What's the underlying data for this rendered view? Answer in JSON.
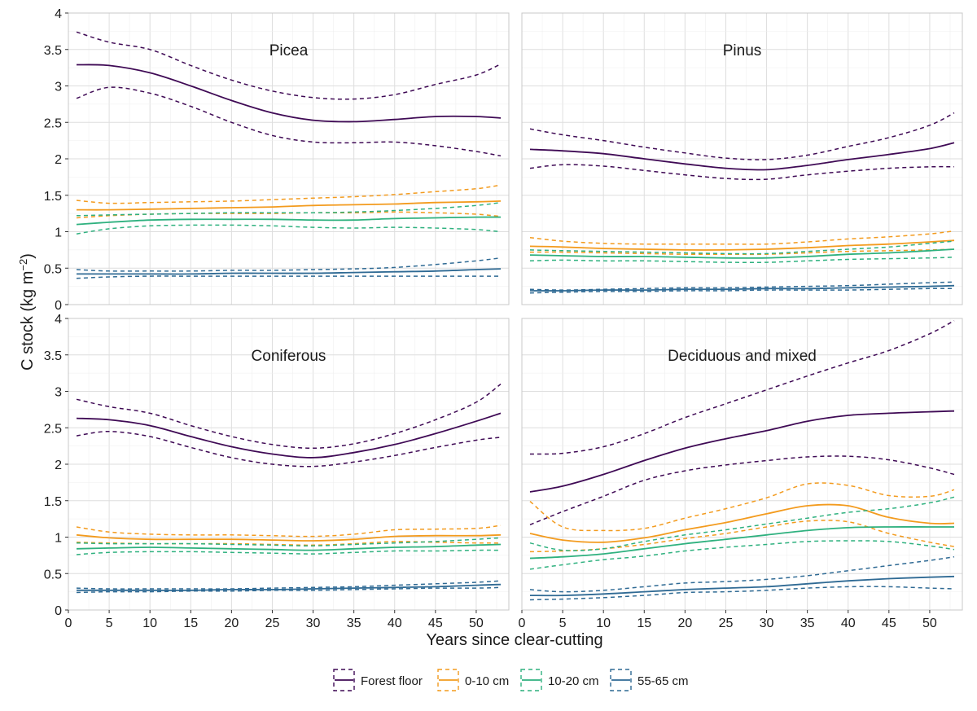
{
  "figure": {
    "ylabel_main": "C stock (kg m",
    "ylabel_sup": "−2",
    "ylabel_close": ")",
    "xlabel": "Years since clear-cutting"
  },
  "legend": {
    "placement": "bottom",
    "items": [
      {
        "label": "Forest floor",
        "color": "#3f0a55"
      },
      {
        "label": "0-10 cm",
        "color": "#f39b1e"
      },
      {
        "label": "10-20 cm",
        "color": "#2fb17f"
      },
      {
        "label": "55-65 cm",
        "color": "#2f6a94"
      }
    ]
  },
  "chart_data": [
    {
      "type": "line",
      "panel": "Picea",
      "title": "Picea",
      "xlim": [
        0,
        54
      ],
      "ylim": [
        0,
        4
      ],
      "x_ticks": [
        0,
        5,
        10,
        15,
        20,
        25,
        30,
        35,
        40,
        45,
        50
      ],
      "y_ticks": [
        0,
        0.5,
        1,
        1.5,
        2,
        2.5,
        3,
        3.5,
        4
      ],
      "grid": true,
      "line_styles": {
        "mean": "solid",
        "lower": "dashed",
        "upper": "dashed"
      },
      "x": [
        1,
        5,
        10,
        15,
        20,
        25,
        30,
        35,
        40,
        45,
        50,
        53
      ],
      "series": [
        {
          "name": "Forest floor",
          "color": "#3f0a55",
          "mean": [
            3.29,
            3.28,
            3.18,
            3.0,
            2.8,
            2.63,
            2.53,
            2.51,
            2.54,
            2.58,
            2.58,
            2.56
          ],
          "lower": [
            2.83,
            2.98,
            2.9,
            2.72,
            2.5,
            2.32,
            2.23,
            2.22,
            2.23,
            2.18,
            2.1,
            2.04
          ],
          "upper": [
            3.74,
            3.6,
            3.5,
            3.28,
            3.08,
            2.93,
            2.84,
            2.82,
            2.88,
            3.02,
            3.15,
            3.3
          ]
        },
        {
          "name": "0-10 cm",
          "color": "#f39b1e",
          "mean": [
            1.3,
            1.3,
            1.31,
            1.32,
            1.33,
            1.34,
            1.36,
            1.37,
            1.38,
            1.4,
            1.41,
            1.42
          ],
          "lower": [
            1.19,
            1.22,
            1.24,
            1.25,
            1.25,
            1.25,
            1.26,
            1.26,
            1.27,
            1.26,
            1.24,
            1.21
          ],
          "upper": [
            1.43,
            1.39,
            1.4,
            1.41,
            1.42,
            1.44,
            1.46,
            1.48,
            1.51,
            1.55,
            1.59,
            1.64
          ]
        },
        {
          "name": "10-20 cm",
          "color": "#2fb17f",
          "mean": [
            1.1,
            1.13,
            1.16,
            1.17,
            1.17,
            1.17,
            1.16,
            1.16,
            1.18,
            1.19,
            1.2,
            1.2
          ],
          "lower": [
            0.97,
            1.04,
            1.08,
            1.09,
            1.09,
            1.08,
            1.06,
            1.05,
            1.06,
            1.05,
            1.03,
            1.0
          ],
          "upper": [
            1.22,
            1.23,
            1.24,
            1.25,
            1.26,
            1.26,
            1.26,
            1.27,
            1.29,
            1.32,
            1.36,
            1.4
          ]
        },
        {
          "name": "55-65 cm",
          "color": "#2f6a94",
          "mean": [
            0.42,
            0.42,
            0.42,
            0.42,
            0.43,
            0.43,
            0.43,
            0.44,
            0.45,
            0.46,
            0.48,
            0.49
          ],
          "lower": [
            0.36,
            0.38,
            0.39,
            0.39,
            0.39,
            0.39,
            0.39,
            0.39,
            0.39,
            0.39,
            0.39,
            0.39
          ],
          "upper": [
            0.48,
            0.46,
            0.46,
            0.46,
            0.47,
            0.47,
            0.48,
            0.49,
            0.51,
            0.55,
            0.6,
            0.64
          ]
        }
      ]
    },
    {
      "type": "line",
      "panel": "Pinus",
      "title": "Pinus",
      "xlim": [
        0,
        54
      ],
      "ylim": [
        0,
        4
      ],
      "x_ticks": [
        0,
        5,
        10,
        15,
        20,
        25,
        30,
        35,
        40,
        45,
        50
      ],
      "y_ticks": [
        0,
        0.5,
        1,
        1.5,
        2,
        2.5,
        3,
        3.5,
        4
      ],
      "grid": true,
      "line_styles": {
        "mean": "solid",
        "lower": "dashed",
        "upper": "dashed"
      },
      "x": [
        1,
        5,
        10,
        15,
        20,
        25,
        30,
        35,
        40,
        45,
        50,
        53
      ],
      "series": [
        {
          "name": "Forest floor",
          "color": "#3f0a55",
          "mean": [
            2.13,
            2.11,
            2.07,
            2.0,
            1.93,
            1.87,
            1.85,
            1.91,
            1.99,
            2.06,
            2.14,
            2.22
          ],
          "lower": [
            1.87,
            1.92,
            1.9,
            1.84,
            1.78,
            1.73,
            1.72,
            1.78,
            1.83,
            1.87,
            1.89,
            1.89
          ],
          "upper": [
            2.41,
            2.33,
            2.25,
            2.16,
            2.08,
            2.01,
            1.99,
            2.05,
            2.17,
            2.29,
            2.46,
            2.63
          ]
        },
        {
          "name": "0-10 cm",
          "color": "#f39b1e",
          "mean": [
            0.8,
            0.79,
            0.77,
            0.76,
            0.75,
            0.75,
            0.76,
            0.78,
            0.81,
            0.83,
            0.86,
            0.88
          ],
          "lower": [
            0.72,
            0.72,
            0.71,
            0.7,
            0.69,
            0.69,
            0.69,
            0.71,
            0.73,
            0.74,
            0.75,
            0.76
          ],
          "upper": [
            0.92,
            0.87,
            0.84,
            0.83,
            0.83,
            0.83,
            0.83,
            0.86,
            0.9,
            0.93,
            0.97,
            1.01
          ]
        },
        {
          "name": "10-20 cm",
          "color": "#2fb17f",
          "mean": [
            0.68,
            0.67,
            0.66,
            0.66,
            0.65,
            0.64,
            0.64,
            0.66,
            0.69,
            0.71,
            0.74,
            0.76
          ],
          "lower": [
            0.6,
            0.61,
            0.6,
            0.6,
            0.59,
            0.58,
            0.58,
            0.6,
            0.62,
            0.63,
            0.64,
            0.65
          ],
          "upper": [
            0.75,
            0.74,
            0.73,
            0.72,
            0.71,
            0.7,
            0.7,
            0.73,
            0.76,
            0.79,
            0.84,
            0.87
          ]
        },
        {
          "name": "55-65 cm",
          "color": "#2f6a94",
          "mean": [
            0.19,
            0.19,
            0.2,
            0.2,
            0.21,
            0.21,
            0.22,
            0.22,
            0.23,
            0.24,
            0.25,
            0.26
          ],
          "lower": [
            0.16,
            0.17,
            0.18,
            0.18,
            0.19,
            0.19,
            0.2,
            0.2,
            0.2,
            0.21,
            0.22,
            0.22
          ],
          "upper": [
            0.21,
            0.2,
            0.21,
            0.22,
            0.23,
            0.23,
            0.24,
            0.25,
            0.26,
            0.28,
            0.3,
            0.31
          ]
        }
      ]
    },
    {
      "type": "line",
      "panel": "Coniferous",
      "title": "Coniferous",
      "xlim": [
        0,
        54
      ],
      "ylim": [
        0,
        4
      ],
      "x_ticks": [
        0,
        5,
        10,
        15,
        20,
        25,
        30,
        35,
        40,
        45,
        50
      ],
      "y_ticks": [
        0,
        0.5,
        1,
        1.5,
        2,
        2.5,
        3,
        3.5,
        4
      ],
      "grid": true,
      "line_styles": {
        "mean": "solid",
        "lower": "dashed",
        "upper": "dashed"
      },
      "x": [
        1,
        5,
        10,
        15,
        20,
        25,
        30,
        35,
        40,
        45,
        50,
        53
      ],
      "series": [
        {
          "name": "Forest floor",
          "color": "#3f0a55",
          "mean": [
            2.63,
            2.61,
            2.53,
            2.38,
            2.24,
            2.14,
            2.09,
            2.16,
            2.27,
            2.42,
            2.59,
            2.7
          ],
          "lower": [
            2.39,
            2.45,
            2.38,
            2.23,
            2.09,
            2.0,
            1.97,
            2.03,
            2.12,
            2.23,
            2.33,
            2.37
          ],
          "upper": [
            2.89,
            2.79,
            2.7,
            2.53,
            2.38,
            2.27,
            2.22,
            2.28,
            2.42,
            2.61,
            2.85,
            3.1
          ]
        },
        {
          "name": "0-10 cm",
          "color": "#f39b1e",
          "mean": [
            1.03,
            0.99,
            0.97,
            0.97,
            0.97,
            0.96,
            0.95,
            0.97,
            1.01,
            1.02,
            1.02,
            1.03
          ],
          "lower": [
            0.93,
            0.92,
            0.91,
            0.91,
            0.91,
            0.9,
            0.89,
            0.91,
            0.94,
            0.93,
            0.92,
            0.92
          ],
          "upper": [
            1.14,
            1.07,
            1.04,
            1.03,
            1.03,
            1.02,
            1.01,
            1.04,
            1.1,
            1.11,
            1.12,
            1.16
          ]
        },
        {
          "name": "10-20 cm",
          "color": "#2fb17f",
          "mean": [
            0.84,
            0.85,
            0.86,
            0.85,
            0.84,
            0.83,
            0.82,
            0.84,
            0.86,
            0.87,
            0.89,
            0.9
          ],
          "lower": [
            0.76,
            0.79,
            0.8,
            0.8,
            0.79,
            0.78,
            0.77,
            0.79,
            0.81,
            0.81,
            0.82,
            0.82
          ],
          "upper": [
            0.92,
            0.91,
            0.91,
            0.91,
            0.9,
            0.89,
            0.88,
            0.9,
            0.92,
            0.94,
            0.97,
            0.99
          ]
        },
        {
          "name": "55-65 cm",
          "color": "#2f6a94",
          "mean": [
            0.27,
            0.27,
            0.27,
            0.27,
            0.28,
            0.28,
            0.29,
            0.3,
            0.31,
            0.32,
            0.34,
            0.35
          ],
          "lower": [
            0.24,
            0.25,
            0.25,
            0.26,
            0.26,
            0.27,
            0.27,
            0.28,
            0.29,
            0.3,
            0.3,
            0.31
          ],
          "upper": [
            0.3,
            0.29,
            0.29,
            0.29,
            0.29,
            0.3,
            0.31,
            0.32,
            0.34,
            0.36,
            0.38,
            0.4
          ]
        }
      ]
    },
    {
      "type": "line",
      "panel": "Deciduous and mixed",
      "title": "Deciduous and mixed",
      "xlim": [
        0,
        54
      ],
      "ylim": [
        0,
        4
      ],
      "x_ticks": [
        0,
        5,
        10,
        15,
        20,
        25,
        30,
        35,
        40,
        45,
        50
      ],
      "y_ticks": [
        0,
        0.5,
        1,
        1.5,
        2,
        2.5,
        3,
        3.5,
        4
      ],
      "grid": true,
      "line_styles": {
        "mean": "solid",
        "lower": "dashed",
        "upper": "dashed"
      },
      "x": [
        1,
        5,
        10,
        15,
        20,
        25,
        30,
        35,
        40,
        45,
        50,
        53
      ],
      "series": [
        {
          "name": "Forest floor",
          "color": "#3f0a55",
          "mean": [
            1.62,
            1.7,
            1.86,
            2.05,
            2.22,
            2.35,
            2.46,
            2.59,
            2.67,
            2.7,
            2.72,
            2.73
          ],
          "lower": [
            1.17,
            1.35,
            1.56,
            1.78,
            1.91,
            1.99,
            2.05,
            2.1,
            2.11,
            2.06,
            1.95,
            1.86
          ],
          "upper": [
            2.14,
            2.15,
            2.24,
            2.42,
            2.64,
            2.83,
            3.02,
            3.21,
            3.39,
            3.56,
            3.79,
            3.97
          ]
        },
        {
          "name": "0-10 cm",
          "color": "#f39b1e",
          "mean": [
            1.05,
            0.96,
            0.93,
            0.99,
            1.1,
            1.2,
            1.32,
            1.43,
            1.43,
            1.27,
            1.19,
            1.19
          ],
          "lower": [
            0.8,
            0.81,
            0.84,
            0.9,
            0.98,
            1.05,
            1.14,
            1.22,
            1.21,
            1.05,
            0.93,
            0.87
          ],
          "upper": [
            1.49,
            1.14,
            1.09,
            1.12,
            1.26,
            1.39,
            1.54,
            1.73,
            1.71,
            1.57,
            1.56,
            1.65
          ]
        },
        {
          "name": "10-20 cm",
          "color": "#2fb17f",
          "mean": [
            0.71,
            0.73,
            0.77,
            0.84,
            0.91,
            0.97,
            1.03,
            1.09,
            1.13,
            1.14,
            1.14,
            1.14
          ],
          "lower": [
            0.56,
            0.62,
            0.69,
            0.74,
            0.81,
            0.86,
            0.9,
            0.94,
            0.95,
            0.94,
            0.88,
            0.83
          ],
          "upper": [
            0.92,
            0.82,
            0.84,
            0.94,
            1.03,
            1.1,
            1.18,
            1.26,
            1.34,
            1.39,
            1.47,
            1.55
          ]
        },
        {
          "name": "55-65 cm",
          "color": "#2f6a94",
          "mean": [
            0.2,
            0.2,
            0.22,
            0.25,
            0.28,
            0.3,
            0.32,
            0.36,
            0.4,
            0.43,
            0.45,
            0.46
          ],
          "lower": [
            0.14,
            0.15,
            0.17,
            0.2,
            0.24,
            0.25,
            0.27,
            0.3,
            0.32,
            0.32,
            0.3,
            0.29
          ],
          "upper": [
            0.28,
            0.25,
            0.27,
            0.32,
            0.37,
            0.39,
            0.42,
            0.47,
            0.54,
            0.61,
            0.68,
            0.73
          ]
        }
      ]
    }
  ]
}
